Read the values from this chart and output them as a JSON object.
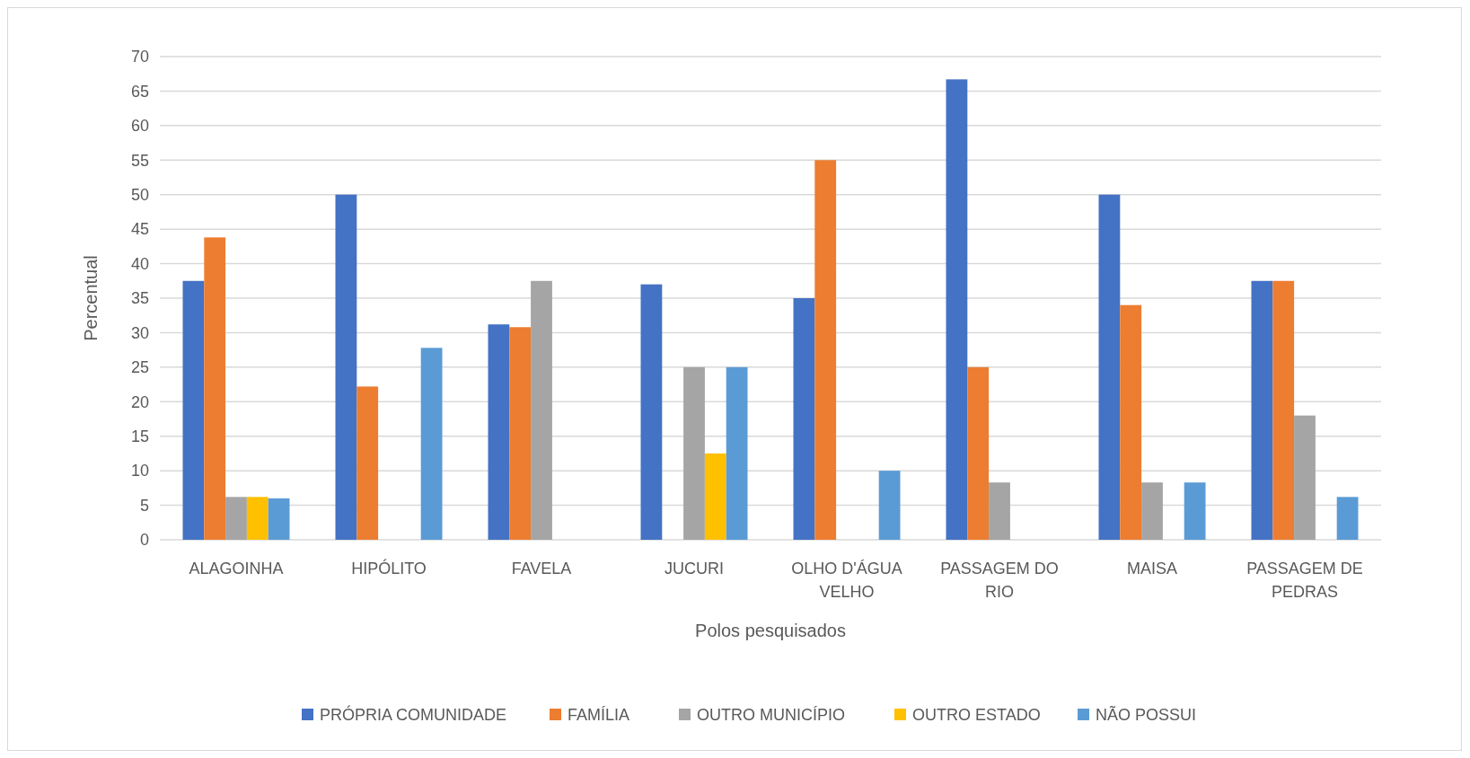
{
  "chart_data": {
    "type": "bar",
    "xlabel": "Polos pesquisados",
    "ylabel": "Percentual",
    "categories": [
      "ALAGOINHA",
      "HIPÓLITO",
      "FAVELA",
      "JUCURI",
      "OLHO D'ÁGUA VELHO",
      "PASSAGEM DO RIO",
      "MAISA",
      "PASSAGEM DE PEDRAS"
    ],
    "series": [
      {
        "name": "PRÓPRIA COMUNIDADE",
        "color": "#4472c4",
        "values": [
          37.5,
          50,
          31.2,
          37,
          35,
          66.7,
          50,
          37.5
        ]
      },
      {
        "name": "FAMÍLIA",
        "color": "#ed7d31",
        "values": [
          43.8,
          22.2,
          30.8,
          0,
          55,
          25,
          34,
          37.5
        ]
      },
      {
        "name": "OUTRO MUNICÍPIO",
        "color": "#a5a5a5",
        "values": [
          6.2,
          0,
          37.5,
          25,
          0,
          8.3,
          8.3,
          18
        ]
      },
      {
        "name": "OUTRO ESTADO",
        "color": "#ffc000",
        "values": [
          6.2,
          0,
          0,
          12.5,
          0,
          0,
          0,
          0
        ]
      },
      {
        "name": "NÃO POSSUI",
        "color": "#5b9bd5",
        "values": [
          6,
          27.8,
          0,
          25,
          10,
          0,
          8.3,
          6.2
        ]
      }
    ],
    "ylim": [
      0,
      70
    ],
    "yticks": [
      0,
      5,
      10,
      15,
      20,
      25,
      30,
      35,
      40,
      45,
      50,
      55,
      60,
      65,
      70
    ],
    "grid": "y",
    "legend": "bottom"
  }
}
